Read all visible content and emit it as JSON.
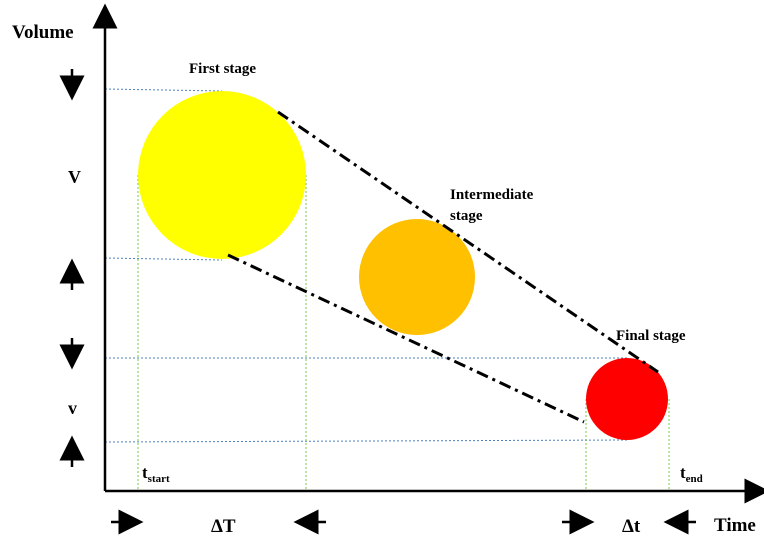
{
  "axes": {
    "y_label": "Volume",
    "x_label": "Time"
  },
  "stages": [
    {
      "label": "First stage",
      "color": "#FFFF00"
    },
    {
      "label_line1": "Intermediate",
      "label_line2": "stage",
      "color": "#FFC000"
    },
    {
      "label": "Final stage",
      "color": "#FF0000"
    }
  ],
  "volume_labels": {
    "big": "V",
    "small": "v"
  },
  "time_markers": {
    "start": {
      "base": "t",
      "sub": "start"
    },
    "end": {
      "base": "t",
      "sub": "end"
    }
  },
  "intervals": {
    "big": "ΔT",
    "small": "Δt"
  },
  "colors": {
    "guide_blue": "#4F81BD",
    "guide_green": "#7AC943",
    "dash_line": "#000000"
  }
}
